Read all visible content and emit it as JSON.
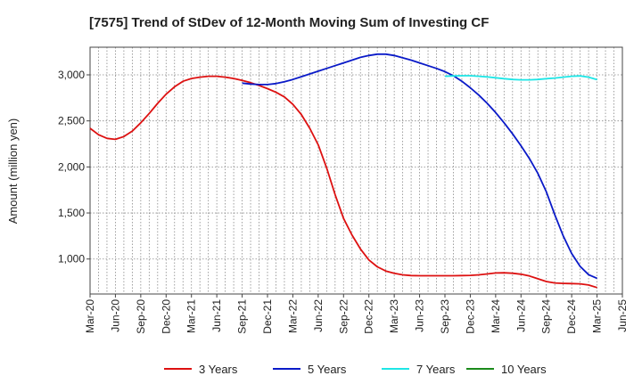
{
  "chart_data": {
    "type": "line",
    "title": "[7575]  Trend of StDev of 12-Month Moving Sum of Investing CF",
    "ylabel": "Amount (million yen)",
    "xlabel": "",
    "ylim": [
      620,
      3300
    ],
    "yticks": [
      1000,
      1500,
      2000,
      2500,
      3000
    ],
    "ytick_labels": [
      "1,000",
      "1,500",
      "2,000",
      "2,500",
      "3,000"
    ],
    "x_start": "Mar-20",
    "xticks": [
      "Mar-20",
      "Jun-20",
      "Sep-20",
      "Dec-20",
      "Mar-21",
      "Jun-21",
      "Sep-21",
      "Dec-21",
      "Mar-22",
      "Jun-22",
      "Sep-22",
      "Dec-22",
      "Mar-23",
      "Jun-23",
      "Sep-23",
      "Dec-23",
      "Mar-24",
      "Jun-24",
      "Sep-24",
      "Dec-24",
      "Mar-25",
      "Jun-25"
    ],
    "grid": true,
    "legend_position": "bottom",
    "series": [
      {
        "name": "3 Years",
        "color": "#dd1111",
        "x": [
          "Mar-20",
          "Apr-20",
          "May-20",
          "Jun-20",
          "Jul-20",
          "Aug-20",
          "Sep-20",
          "Oct-20",
          "Nov-20",
          "Dec-20",
          "Jan-21",
          "Feb-21",
          "Mar-21",
          "Apr-21",
          "May-21",
          "Jun-21",
          "Jul-21",
          "Aug-21",
          "Sep-21",
          "Oct-21",
          "Nov-21",
          "Dec-21",
          "Jan-22",
          "Feb-22",
          "Mar-22",
          "Apr-22",
          "May-22",
          "Jun-22",
          "Jul-22",
          "Aug-22",
          "Sep-22",
          "Oct-22",
          "Nov-22",
          "Dec-22",
          "Jan-23",
          "Feb-23",
          "Mar-23",
          "Apr-23",
          "May-23",
          "Jun-23",
          "Jul-23",
          "Aug-23",
          "Sep-23",
          "Oct-23",
          "Nov-23",
          "Dec-23",
          "Jan-24",
          "Feb-24",
          "Mar-24",
          "Apr-24",
          "May-24",
          "Jun-24",
          "Jul-24",
          "Aug-24",
          "Sep-24",
          "Oct-24",
          "Nov-24",
          "Dec-24",
          "Jan-25",
          "Feb-25",
          "Mar-25"
        ],
        "values": [
          2420,
          2350,
          2310,
          2300,
          2330,
          2390,
          2480,
          2580,
          2690,
          2790,
          2870,
          2930,
          2960,
          2975,
          2985,
          2985,
          2975,
          2960,
          2940,
          2915,
          2885,
          2850,
          2810,
          2760,
          2680,
          2570,
          2420,
          2240,
          1990,
          1700,
          1440,
          1260,
          1110,
          990,
          915,
          870,
          845,
          828,
          820,
          818,
          818,
          818,
          818,
          818,
          820,
          822,
          828,
          838,
          848,
          850,
          845,
          835,
          815,
          785,
          755,
          740,
          735,
          733,
          730,
          718,
          690
        ]
      },
      {
        "name": "5 Years",
        "color": "#0a1ac8",
        "x": [
          "Sep-21",
          "Oct-21",
          "Nov-21",
          "Dec-21",
          "Jan-22",
          "Feb-22",
          "Mar-22",
          "Apr-22",
          "May-22",
          "Jun-22",
          "Jul-22",
          "Aug-22",
          "Sep-22",
          "Oct-22",
          "Nov-22",
          "Dec-22",
          "Jan-23",
          "Feb-23",
          "Mar-23",
          "Apr-23",
          "May-23",
          "Jun-23",
          "Jul-23",
          "Aug-23",
          "Sep-23",
          "Oct-23",
          "Nov-23",
          "Dec-23",
          "Jan-24",
          "Feb-24",
          "Mar-24",
          "Apr-24",
          "May-24",
          "Jun-24",
          "Jul-24",
          "Aug-24",
          "Sep-24",
          "Oct-24",
          "Nov-24",
          "Dec-24",
          "Jan-25",
          "Feb-25",
          "Mar-25"
        ],
        "values": [
          2910,
          2900,
          2895,
          2895,
          2905,
          2925,
          2950,
          2980,
          3010,
          3040,
          3070,
          3100,
          3130,
          3160,
          3190,
          3210,
          3225,
          3225,
          3210,
          3185,
          3160,
          3130,
          3100,
          3070,
          3035,
          2990,
          2930,
          2860,
          2780,
          2690,
          2590,
          2480,
          2360,
          2230,
          2090,
          1930,
          1730,
          1480,
          1250,
          1060,
          920,
          830,
          790
        ]
      },
      {
        "name": "7 Years",
        "color": "#1ee6e6",
        "x": [
          "Sep-23",
          "Oct-23",
          "Nov-23",
          "Dec-23",
          "Jan-24",
          "Feb-24",
          "Mar-24",
          "Apr-24",
          "May-24",
          "Jun-24",
          "Jul-24",
          "Aug-24",
          "Sep-24",
          "Oct-24",
          "Nov-24",
          "Dec-24",
          "Jan-25",
          "Feb-25",
          "Mar-25"
        ],
        "values": [
          2985,
          2988,
          2990,
          2990,
          2985,
          2978,
          2968,
          2958,
          2950,
          2946,
          2946,
          2950,
          2958,
          2965,
          2975,
          2985,
          2988,
          2975,
          2948
        ]
      },
      {
        "name": "10 Years",
        "color": "#1a8a1a",
        "x": [],
        "values": []
      }
    ]
  }
}
